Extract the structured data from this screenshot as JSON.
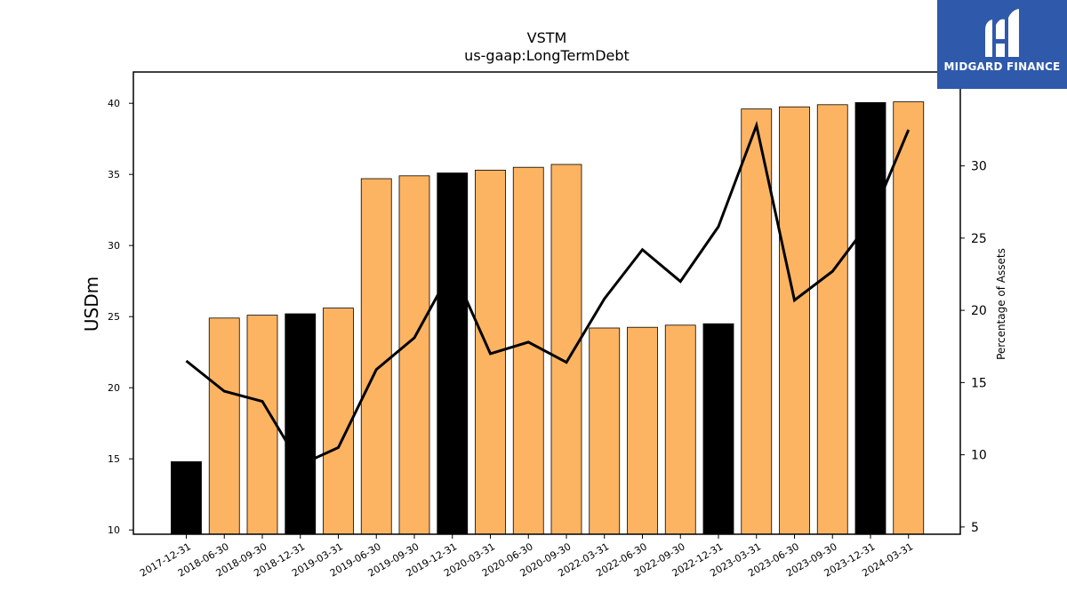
{
  "chart_data": {
    "type": "bar",
    "title": "VSTM",
    "subtitle": "us-gaap:LongTermDebt",
    "ylabel": "USDm",
    "y2label": "Percentage of Assets",
    "ylim": [
      9.7,
      42.2
    ],
    "y2lim": [
      4.5,
      36.5
    ],
    "yticks": [
      10,
      15,
      20,
      25,
      30,
      35,
      40
    ],
    "y2ticks": [
      5,
      10,
      15,
      20,
      25,
      30
    ],
    "categories": [
      "2017-12-31",
      "2018-06-30",
      "2018-09-30",
      "2018-12-31",
      "2019-03-31",
      "2019-06-30",
      "2019-09-30",
      "2019-12-31",
      "2020-03-31",
      "2020-06-30",
      "2020-09-30",
      "2022-03-31",
      "2022-06-30",
      "2022-09-30",
      "2022-12-31",
      "2023-03-31",
      "2023-06-30",
      "2023-09-30",
      "2023-12-31",
      "2024-03-31"
    ],
    "series": [
      {
        "kind": "bar",
        "values": [
          14.8,
          24.9,
          25.1,
          25.2,
          25.6,
          34.7,
          34.9,
          35.1,
          35.3,
          35.5,
          35.7,
          24.2,
          24.25,
          24.4,
          24.5,
          39.6,
          39.75,
          39.9,
          40.05,
          40.1
        ],
        "annual": [
          true,
          false,
          false,
          true,
          false,
          false,
          false,
          true,
          false,
          false,
          false,
          false,
          false,
          false,
          true,
          false,
          false,
          false,
          true,
          false
        ]
      },
      {
        "kind": "line",
        "axis": "right",
        "values": [
          16.5,
          14.4,
          13.7,
          9.3,
          10.5,
          15.9,
          18.1,
          22.9,
          17.0,
          17.8,
          16.4,
          20.8,
          24.2,
          22.0,
          25.8,
          32.8,
          20.7,
          22.7,
          26.2,
          32.5
        ]
      }
    ],
    "grid": false,
    "legend": "none"
  },
  "colors": {
    "bar_quarter": "#fdb462",
    "bar_annual": "#000000",
    "line": "#000000",
    "logo_bg": "#2f5aab"
  },
  "logo": {
    "text": "MIDGARD FINANCE",
    "icon": "midgard-m-icon"
  }
}
